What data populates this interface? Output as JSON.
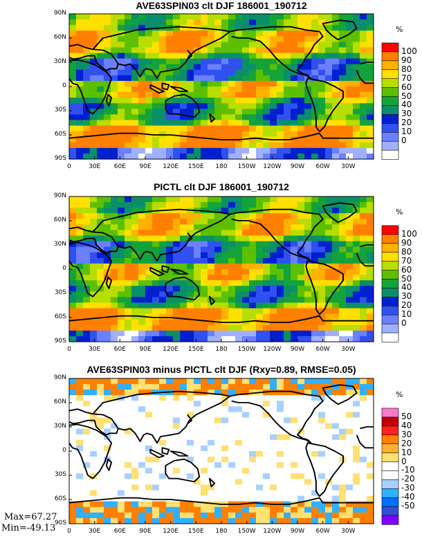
{
  "panels": [
    {
      "title": "AVE63SPIN03 clt DJF 186001_190712",
      "unit": "%",
      "cbar_labels": [
        "100",
        "90",
        "80",
        "70",
        "60",
        "50",
        "40",
        "30",
        "20",
        "10",
        "0"
      ],
      "cbar_colors": [
        "#ff0000",
        "#ff7f00",
        "#ffb000",
        "#ffe000",
        "#b8dd00",
        "#5cc000",
        "#13a33a",
        "#0a8f6a",
        "#0020d0",
        "#3050f0",
        "#6a80ff",
        "#9fb0ff",
        "#ffffff"
      ]
    },
    {
      "title": "PICTL clt DJF 186001_190712",
      "unit": "%",
      "cbar_labels": [
        "100",
        "90",
        "80",
        "70",
        "60",
        "50",
        "40",
        "30",
        "20",
        "10",
        "0"
      ],
      "cbar_colors": [
        "#ff0000",
        "#ff7f00",
        "#ffb000",
        "#ffe000",
        "#b8dd00",
        "#5cc000",
        "#13a33a",
        "#0a8f6a",
        "#0020d0",
        "#3050f0",
        "#6a80ff",
        "#9fb0ff",
        "#ffffff"
      ]
    },
    {
      "title": "AVE63SPIN03 minus PICTL clt DJF (Rxy=0.89, RMSE=0.05)",
      "unit": "%",
      "cbar_labels": [
        "50",
        "40",
        "30",
        "20",
        "10",
        "0",
        "-10",
        "-20",
        "-30",
        "-40",
        "-50"
      ],
      "cbar_colors": [
        "#ff77cc",
        "#c00000",
        "#ff2020",
        "#ff8000",
        "#ffb030",
        "#ffe070",
        "#ffffff",
        "#ffffff",
        "#a8d0ff",
        "#30b0ff",
        "#0070ff",
        "#3050d0",
        "#8000ff"
      ]
    }
  ],
  "lat_labels": [
    "90N",
    "60N",
    "30N",
    "0",
    "30S",
    "60S",
    "90S"
  ],
  "lon_labels": [
    "0",
    "30E",
    "60E",
    "90E",
    "120E",
    "150E",
    "180",
    "150W",
    "120W",
    "90W",
    "60W",
    "30W"
  ],
  "stats": {
    "max": "Max=67.27",
    "min": "Min=-49.13"
  }
}
